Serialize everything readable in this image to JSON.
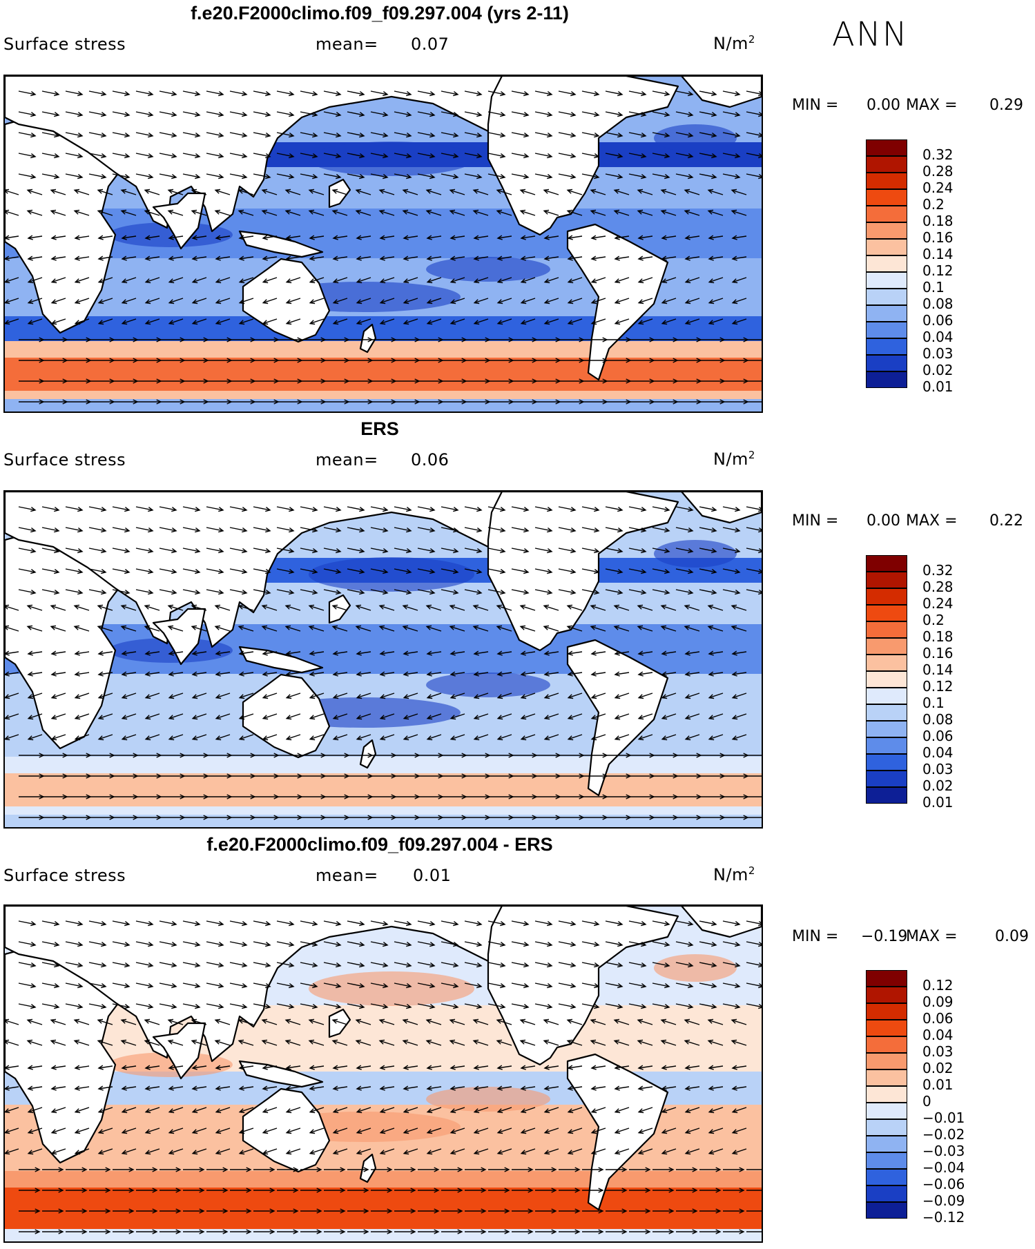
{
  "season": "ANN",
  "panels": [
    {
      "title": "f.e20.F2000climo.f09_f09.297.004 (yrs 2-11)",
      "variable": "Surface stress",
      "mean_label": "mean=",
      "mean_value": "0.07",
      "units_base": "N/m",
      "units_exp": "2",
      "min_label": "MIN =",
      "min_value": "0.00",
      "max_label": "MAX =",
      "max_value": "0.29",
      "colorbar": [
        "0.32",
        "0.28",
        "0.24",
        "0.2",
        "0.18",
        "0.16",
        "0.14",
        "0.12",
        "0.1",
        "0.08",
        "0.06",
        "0.04",
        "0.03",
        "0.02",
        "0.01"
      ]
    },
    {
      "title": "ERS",
      "variable": "Surface stress",
      "mean_label": "mean=",
      "mean_value": "0.06",
      "units_base": "N/m",
      "units_exp": "2",
      "min_label": "MIN =",
      "min_value": "0.00",
      "max_label": "MAX =",
      "max_value": "0.22",
      "colorbar": [
        "0.32",
        "0.28",
        "0.24",
        "0.2",
        "0.18",
        "0.16",
        "0.14",
        "0.12",
        "0.1",
        "0.08",
        "0.06",
        "0.04",
        "0.03",
        "0.02",
        "0.01"
      ]
    },
    {
      "title": "f.e20.F2000climo.f09_f09.297.004 - ERS",
      "variable": "Surface stress",
      "mean_label": "mean=",
      "mean_value": "0.01",
      "units_base": "N/m",
      "units_exp": "2",
      "min_label": "MIN =",
      "min_value": "−0.19",
      "max_label": "MAX =",
      "max_value": "0.09",
      "colorbar": [
        "0.12",
        "0.09",
        "0.06",
        "0.04",
        "0.03",
        "0.02",
        "0.01",
        "0",
        "−0.01",
        "−0.02",
        "−0.03",
        "−0.04",
        "−0.06",
        "−0.09",
        "−0.12"
      ]
    }
  ],
  "colors": {
    "seq": [
      "#7f0000",
      "#b01500",
      "#d42c00",
      "#ee4a10",
      "#f46d3a",
      "#f89a6e",
      "#fbc1a0",
      "#fde6d6",
      "#dfeafc",
      "#b9d2f7",
      "#8fb3f2",
      "#5e8cea",
      "#2f62de",
      "#1a3fc4",
      "#0d1f96"
    ],
    "land": "#ffffff",
    "coast": "#000000"
  }
}
